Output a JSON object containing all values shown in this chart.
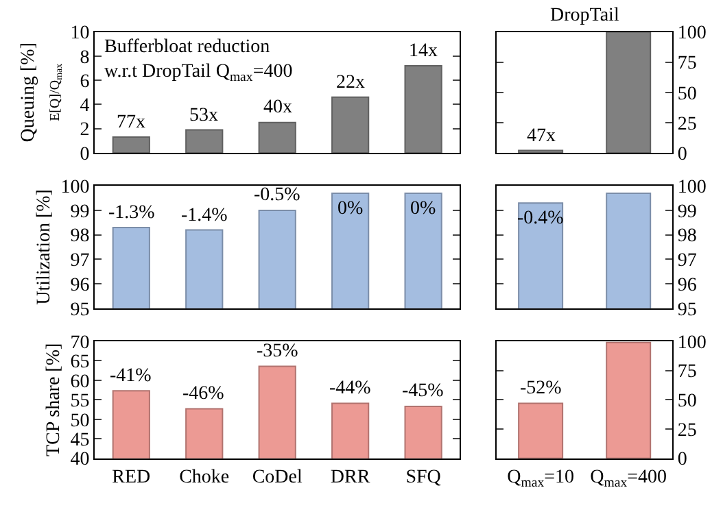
{
  "chart_data": [
    {
      "type": "bar",
      "categories": [
        "RED",
        "Choke",
        "CoDel",
        "DRR",
        "SFQ"
      ],
      "values": [
        1.3,
        1.9,
        2.5,
        4.6,
        7.2
      ],
      "color": "#808080",
      "ylim": [
        0,
        10
      ],
      "yticks": [
        0,
        2,
        4,
        6,
        8,
        10
      ],
      "ylabel": "Queuing [%]\nE[Q]/Q$_{max}$",
      "tick_labels": "y",
      "annotations": [
        "Bufferbloat reduction\nw.r.t DropTail Q$_{max}$=400",
        {
          "text": "77x",
          "x": "RED",
          "y": 1.3
        },
        {
          "text": "53x",
          "x": "Choke",
          "y": 1.9
        },
        {
          "text": "40x",
          "x": "CoDel",
          "y": 2.5
        },
        {
          "text": "22x",
          "x": "DRR",
          "y": 4.6
        },
        {
          "text": "14x",
          "x": "SFQ",
          "y": 7.2
        }
      ]
    },
    {
      "type": "bar",
      "title": "DropTail",
      "categories": [
        "Q$_{max}$=10",
        "Q$_{max}$=400"
      ],
      "values": [
        2,
        100
      ],
      "color": "#808080",
      "ylim": [
        0,
        100
      ],
      "yticks": [
        0,
        25,
        50,
        75,
        100
      ],
      "tick_labels": "y",
      "annotations": [
        {
          "text": "47x",
          "x": "Q$_{max}$=10",
          "y": 2
        }
      ]
    },
    {
      "type": "bar",
      "categories": [
        "RED",
        "Choke",
        "CoDel",
        "DRR",
        "SFQ"
      ],
      "values": [
        98.3,
        98.2,
        99.0,
        99.7,
        99.7
      ],
      "color": "#a4bde0",
      "ylim": [
        95,
        100
      ],
      "yticks": [
        95,
        96,
        97,
        98,
        99,
        100
      ],
      "ylabel": "Utilization [%]",
      "tick_labels": "y",
      "annotations": [
        {
          "text": "-1.3%",
          "x": "RED",
          "y": 98.3
        },
        {
          "text": "-1.4%",
          "x": "Choke",
          "y": 98.2
        },
        {
          "text": "-0.5%",
          "x": "CoDel",
          "y": 99.0
        },
        {
          "text": "0%",
          "x": "DRR",
          "y": 99.7
        },
        {
          "text": "0%",
          "x": "SFQ",
          "y": 99.7
        }
      ]
    },
    {
      "type": "bar",
      "categories": [
        "Q$_{max}$=10",
        "Q$_{max}$=400"
      ],
      "values": [
        99.3,
        99.7
      ],
      "color": "#a4bde0",
      "ylim": [
        95,
        100
      ],
      "yticks": [
        95,
        96,
        97,
        98,
        99,
        100
      ],
      "tick_labels": "y",
      "annotations": [
        {
          "text": "-0.4%",
          "x": "Q$_{max}$=10",
          "y": 99.3
        }
      ]
    },
    {
      "type": "bar",
      "categories": [
        "RED",
        "Choke",
        "CoDel",
        "DRR",
        "SFQ"
      ],
      "values": [
        57.3,
        52.7,
        63.6,
        54.1,
        53.3
      ],
      "color": "#ec9a94",
      "ylim": [
        40,
        70
      ],
      "yticks": [
        40,
        45,
        50,
        55,
        60,
        65,
        70
      ],
      "ylabel": "TCP share [%]",
      "annotations": [
        {
          "text": "-41%",
          "x": "RED",
          "y": 57.3
        },
        {
          "text": "-46%",
          "x": "Choke",
          "y": 52.7
        },
        {
          "text": "-35%",
          "x": "CoDel",
          "y": 63.6
        },
        {
          "text": "-44%",
          "x": "DRR",
          "y": 54.1
        },
        {
          "text": "-45%",
          "x": "SFQ",
          "y": 53.3
        }
      ]
    },
    {
      "type": "bar",
      "categories": [
        "Q$_{max}$=10",
        "Q$_{max}$=400"
      ],
      "values": [
        47,
        99
      ],
      "color": "#ec9a94",
      "ylim": [
        0,
        100
      ],
      "yticks": [
        0,
        25,
        50,
        75,
        100
      ],
      "annotations": [
        {
          "text": "-52%",
          "x": "Q$_{max}$=10",
          "y": 47
        }
      ]
    }
  ]
}
